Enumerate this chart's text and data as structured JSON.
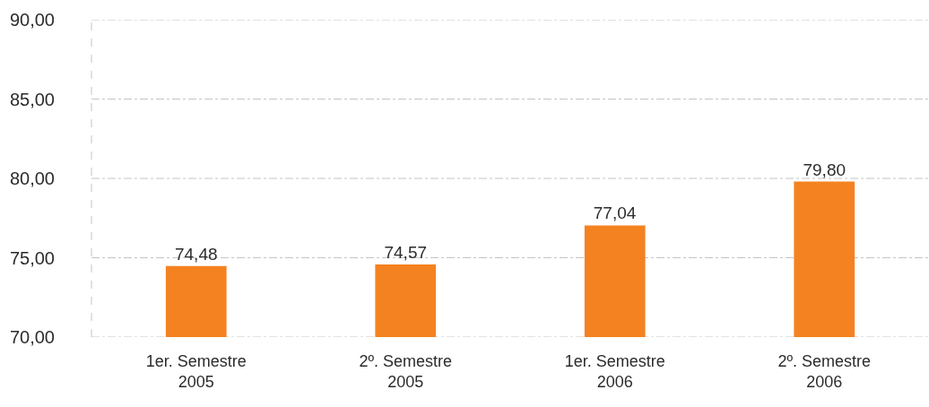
{
  "chart_data": {
    "type": "bar",
    "categories": [
      "1er. Semestre\n2005",
      "2º. Semestre\n2005",
      "1er. Semestre\n2006",
      "2º. Semestre\n2006"
    ],
    "values": [
      74.48,
      74.57,
      77.04,
      79.8
    ],
    "value_labels": [
      "74,48",
      "74,57",
      "77,04",
      "79,80"
    ],
    "color": "#f58220",
    "ylim": [
      70,
      90
    ],
    "yticks": [
      {
        "value": 70,
        "label": "70,00"
      },
      {
        "value": 75,
        "label": "75,00"
      },
      {
        "value": 80,
        "label": "80,00"
      },
      {
        "value": 85,
        "label": "85,00"
      },
      {
        "value": 90,
        "label": "90,00"
      }
    ],
    "grid": "y"
  }
}
